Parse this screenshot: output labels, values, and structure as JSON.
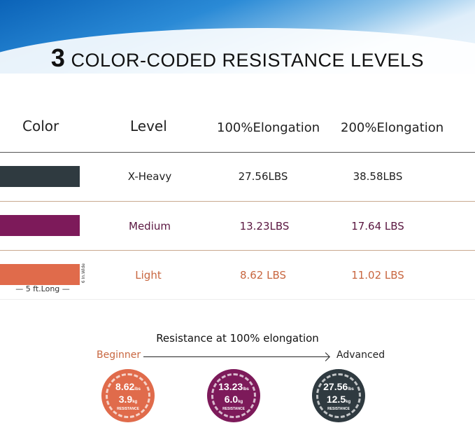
{
  "title": {
    "number": "3",
    "text": " COLOR-CODED RESISTANCE LEVELS"
  },
  "table": {
    "headers": [
      "Color",
      "Level",
      "100%Elongation",
      "200%Elongation"
    ],
    "rows": [
      {
        "color": "#2f3a40",
        "level": "X-Heavy",
        "e100": "27.56LBS",
        "e200": "38.58LBS",
        "text_color": "#222222"
      },
      {
        "color": "#7d1a5a",
        "level": "Medium",
        "e100": "13.23LBS",
        "e200": "17.64 LBS",
        "text_color": "#5a1640"
      },
      {
        "color": "#e06b4b",
        "level": "Light",
        "e100": "8.62 LBS",
        "e200": "11.02 LBS",
        "text_color": "#c8663f"
      }
    ],
    "length_label": "5 ft.Long",
    "width_label": "6 In.Wide"
  },
  "progression": {
    "subtitle": "Resistance at 100% elongation",
    "start": "Beginner",
    "end": "Advanced",
    "circles": [
      {
        "lbs": "8.62",
        "lbs_unit": "lbs",
        "kg": "3.9",
        "kg_unit": "kg",
        "label": "RESISTANCE",
        "color": "#e06b4b"
      },
      {
        "lbs": "13.23",
        "lbs_unit": "lbs",
        "kg": "6.0",
        "kg_unit": "kg",
        "label": "RESISTANCE",
        "color": "#7d1a5a"
      },
      {
        "lbs": "27.56",
        "lbs_unit": "lbs",
        "kg": "12.5",
        "kg_unit": "kg",
        "label": "RESISTANCE",
        "color": "#2f3a40"
      }
    ]
  }
}
